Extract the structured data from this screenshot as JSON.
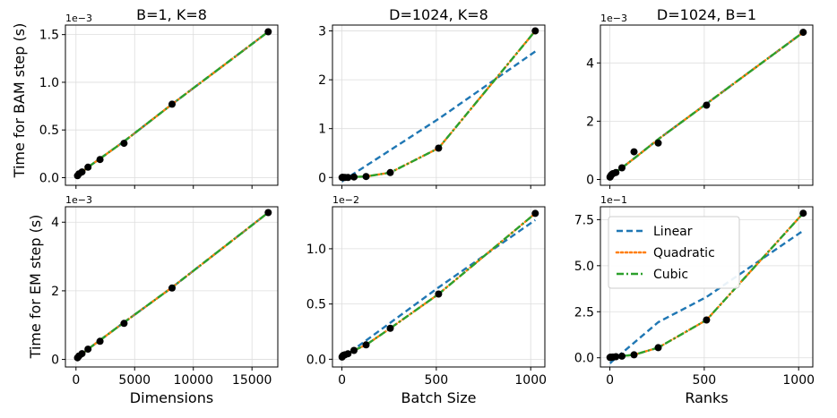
{
  "figure": {
    "row_labels": [
      "Time for BAM step (s)",
      "Time for EM step (s)"
    ],
    "legend": {
      "placement": "upper-left of bottom-right panel",
      "entries": [
        {
          "label": "Linear",
          "style": "dashed",
          "color": "#1f77b4"
        },
        {
          "label": "Quadratic",
          "style": "dotted",
          "color": "#ff7f0e"
        },
        {
          "label": "Cubic",
          "style": "dashdot",
          "color": "#2ca02c"
        }
      ]
    },
    "colors": {
      "linear": "#1f77b4",
      "quadratic": "#ff7f0e",
      "cubic": "#2ca02c",
      "points": "#000000",
      "grid": "#dddddd"
    }
  },
  "chart_data": [
    {
      "type": "line",
      "row": 0,
      "col": 0,
      "title": "B=1, K=8",
      "xlabel": "",
      "ylabel": "Time for BAM step (s)",
      "exponent_label": "1e−3",
      "x": [
        128,
        256,
        512,
        1024,
        2048,
        4096,
        8192,
        16384
      ],
      "points": [
        0.02,
        0.04,
        0.06,
        0.11,
        0.19,
        0.36,
        0.77,
        1.53
      ],
      "fits": {
        "linear": [
          0.02,
          0.04,
          0.06,
          0.11,
          0.2,
          0.38,
          0.77,
          1.53
        ],
        "quadratic": [
          0.02,
          0.04,
          0.06,
          0.11,
          0.2,
          0.38,
          0.77,
          1.53
        ],
        "cubic": [
          0.02,
          0.04,
          0.06,
          0.11,
          0.2,
          0.38,
          0.77,
          1.53
        ]
      },
      "xlim": [
        -900,
        17200
      ],
      "ylim": [
        -0.08,
        1.6
      ],
      "xticks": [
        0,
        5000,
        10000,
        15000
      ],
      "xtick_labels": [
        "",
        "",
        "",
        ""
      ],
      "yticks": [
        0,
        0.5,
        1.0,
        1.5
      ],
      "ytick_labels": [
        "0.0",
        "0.5",
        "1.0",
        "1.5"
      ]
    },
    {
      "type": "line",
      "row": 0,
      "col": 1,
      "title": "D=1024, K=8",
      "xlabel": "",
      "ylabel": "",
      "exponent_label": "",
      "x": [
        1,
        2,
        4,
        8,
        16,
        32,
        64,
        128,
        256,
        512,
        1024
      ],
      "points": [
        0.0,
        0.0,
        0.0,
        0.0,
        0.0,
        0.0,
        0.01,
        0.02,
        0.1,
        0.6,
        3.0
      ],
      "fits": {
        "linear": [
          -0.08,
          -0.08,
          -0.07,
          -0.06,
          -0.04,
          0.0,
          0.08,
          0.24,
          0.56,
          1.2,
          2.58
        ],
        "quadratic": [
          0.0,
          0.0,
          0.0,
          0.0,
          0.0,
          0.0,
          0.01,
          0.02,
          0.1,
          0.6,
          3.0
        ],
        "cubic": [
          0.0,
          0.0,
          0.0,
          0.0,
          0.0,
          0.0,
          0.01,
          0.02,
          0.1,
          0.6,
          3.0
        ]
      },
      "xlim": [
        -50,
        1075
      ],
      "ylim": [
        -0.16,
        3.12
      ],
      "xticks": [
        0,
        500,
        1000
      ],
      "xtick_labels": [
        "",
        "",
        ""
      ],
      "yticks": [
        0,
        1,
        2,
        3
      ],
      "ytick_labels": [
        "0",
        "1",
        "2",
        "3"
      ]
    },
    {
      "type": "line",
      "row": 0,
      "col": 2,
      "title": "D=1024, B=1",
      "xlabel": "",
      "ylabel": "",
      "exponent_label": "1e−3",
      "x": [
        1,
        2,
        4,
        8,
        16,
        32,
        64,
        128,
        256,
        512,
        1024
      ],
      "points": [
        0.08,
        0.1,
        0.12,
        0.16,
        0.2,
        0.24,
        0.4,
        0.95,
        1.25,
        2.55,
        5.05
      ],
      "fits": {
        "linear": [
          0.1,
          0.1,
          0.12,
          0.15,
          0.18,
          0.26,
          0.4,
          0.72,
          1.38,
          2.6,
          5.05
        ],
        "quadratic": [
          0.1,
          0.1,
          0.12,
          0.15,
          0.18,
          0.26,
          0.4,
          0.72,
          1.38,
          2.6,
          5.05
        ],
        "cubic": [
          0.1,
          0.1,
          0.12,
          0.15,
          0.18,
          0.26,
          0.4,
          0.72,
          1.38,
          2.6,
          5.05
        ]
      },
      "xlim": [
        -50,
        1075
      ],
      "ylim": [
        -0.2,
        5.3
      ],
      "xticks": [
        0,
        500,
        1000
      ],
      "xtick_labels": [
        "",
        "",
        ""
      ],
      "yticks": [
        0,
        2,
        4
      ],
      "ytick_labels": [
        "0",
        "2",
        "4"
      ]
    },
    {
      "type": "line",
      "row": 1,
      "col": 0,
      "title": "",
      "xlabel": "Dimensions",
      "ylabel": "Time for EM step (s)",
      "exponent_label": "1e−3",
      "x": [
        128,
        256,
        512,
        1024,
        2048,
        4096,
        8192,
        16384
      ],
      "points": [
        0.05,
        0.1,
        0.17,
        0.3,
        0.53,
        1.05,
        2.08,
        4.28
      ],
      "fits": {
        "linear": [
          0.04,
          0.09,
          0.16,
          0.3,
          0.56,
          1.08,
          2.1,
          4.28
        ],
        "quadratic": [
          0.04,
          0.09,
          0.16,
          0.3,
          0.56,
          1.08,
          2.1,
          4.28
        ],
        "cubic": [
          0.04,
          0.09,
          0.16,
          0.3,
          0.56,
          1.08,
          2.1,
          4.28
        ]
      },
      "xlim": [
        -900,
        17200
      ],
      "ylim": [
        -0.22,
        4.45
      ],
      "xticks": [
        0,
        5000,
        10000,
        15000
      ],
      "xtick_labels": [
        "0",
        "5000",
        "10000",
        "15000"
      ],
      "yticks": [
        0,
        2,
        4
      ],
      "ytick_labels": [
        "0",
        "2",
        "4"
      ]
    },
    {
      "type": "line",
      "row": 1,
      "col": 1,
      "title": "",
      "xlabel": "Batch Size",
      "ylabel": "",
      "exponent_label": "1e−2",
      "x": [
        1,
        2,
        4,
        8,
        16,
        32,
        64,
        128,
        256,
        512,
        1024
      ],
      "points": [
        0.02,
        0.025,
        0.03,
        0.035,
        0.04,
        0.05,
        0.08,
        0.13,
        0.28,
        0.59,
        1.32
      ],
      "fits": {
        "linear": [
          0.01,
          0.012,
          0.014,
          0.02,
          0.03,
          0.05,
          0.09,
          0.17,
          0.33,
          0.65,
          1.26
        ],
        "quadratic": [
          0.02,
          0.025,
          0.03,
          0.035,
          0.04,
          0.05,
          0.08,
          0.13,
          0.28,
          0.59,
          1.32
        ],
        "cubic": [
          0.02,
          0.025,
          0.03,
          0.035,
          0.04,
          0.05,
          0.08,
          0.13,
          0.28,
          0.59,
          1.32
        ]
      },
      "xlim": [
        -50,
        1075
      ],
      "ylim": [
        -0.07,
        1.38
      ],
      "xticks": [
        0,
        500,
        1000
      ],
      "xtick_labels": [
        "0",
        "500",
        "1000"
      ],
      "yticks": [
        0,
        0.5,
        1.0
      ],
      "ytick_labels": [
        "0.0",
        "0.5",
        "1.0"
      ]
    },
    {
      "type": "line",
      "row": 1,
      "col": 2,
      "title": "",
      "xlabel": "Ranks",
      "ylabel": "",
      "exponent_label": "1e−1",
      "x": [
        1,
        2,
        4,
        8,
        16,
        32,
        64,
        128,
        256,
        512,
        1024
      ],
      "points": [
        0.02,
        0.02,
        0.03,
        0.03,
        0.04,
        0.06,
        0.09,
        0.16,
        0.55,
        2.05,
        7.85
      ],
      "fits": {
        "linear": [
          -0.3,
          -0.29,
          -0.27,
          -0.23,
          -0.16,
          -0.02,
          0.26,
          0.81,
          1.93,
          3.3,
          6.9
        ],
        "quadratic": [
          0.02,
          0.02,
          0.03,
          0.03,
          0.04,
          0.06,
          0.09,
          0.16,
          0.55,
          2.05,
          7.85
        ],
        "cubic": [
          0.02,
          0.02,
          0.03,
          0.03,
          0.04,
          0.06,
          0.09,
          0.16,
          0.55,
          2.05,
          7.85
        ]
      },
      "xlim": [
        -50,
        1075
      ],
      "ylim": [
        -0.5,
        8.2
      ],
      "xticks": [
        0,
        500,
        1000
      ],
      "xtick_labels": [
        "0",
        "500",
        "1000"
      ],
      "yticks": [
        0,
        2.5,
        5.0,
        7.5
      ],
      "ytick_labels": [
        "0.0",
        "2.5",
        "5.0",
        "7.5"
      ]
    }
  ]
}
